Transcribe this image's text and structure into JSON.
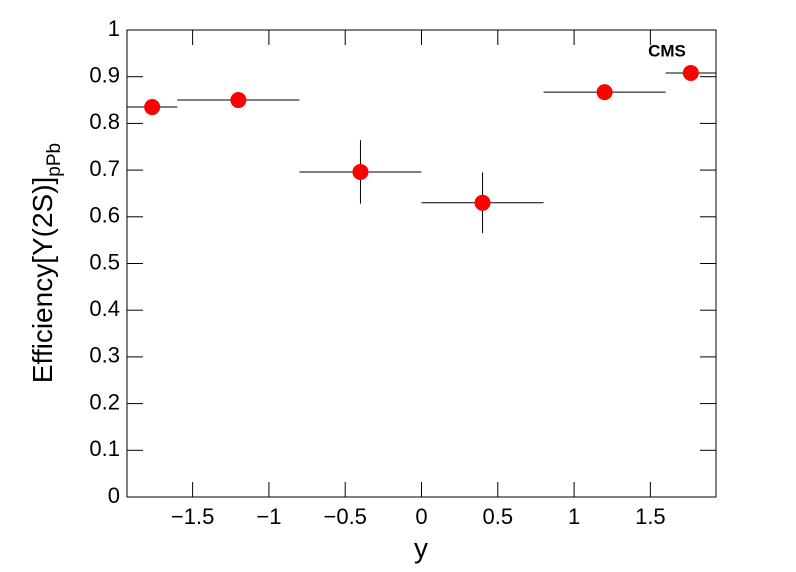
{
  "chart_data": {
    "type": "scatter",
    "ylabel": "Efficiency[Υ(2S)]",
    "ylabel_sub": "pPb",
    "xlabel": "y",
    "annotation": "CMS",
    "series": [
      {
        "color": "#ff0000",
        "x": [
          -1.765,
          -1.2,
          -0.4,
          0.4,
          1.2,
          1.765
        ],
        "xerr": [
          0.165,
          0.4,
          0.4,
          0.4,
          0.4,
          0.165
        ],
        "values": [
          0.835,
          0.85,
          0.696,
          0.63,
          0.867,
          0.908
        ],
        "yerr": [
          0.012,
          0.01,
          0.068,
          0.065,
          0.012,
          0.012
        ]
      }
    ],
    "xlim": [
      -1.93,
      1.93
    ],
    "xticks": [
      {
        "value": -1.5,
        "label": "−1.5"
      },
      {
        "value": -1,
        "label": "−1"
      },
      {
        "value": -0.5,
        "label": "−0.5"
      },
      0,
      0.5,
      1,
      1.5
    ],
    "ylim": [
      0,
      1
    ],
    "yticks": [
      0,
      0.1,
      0.2,
      0.3,
      0.4,
      0.5,
      0.6,
      0.7,
      0.8,
      0.9,
      1
    ]
  }
}
